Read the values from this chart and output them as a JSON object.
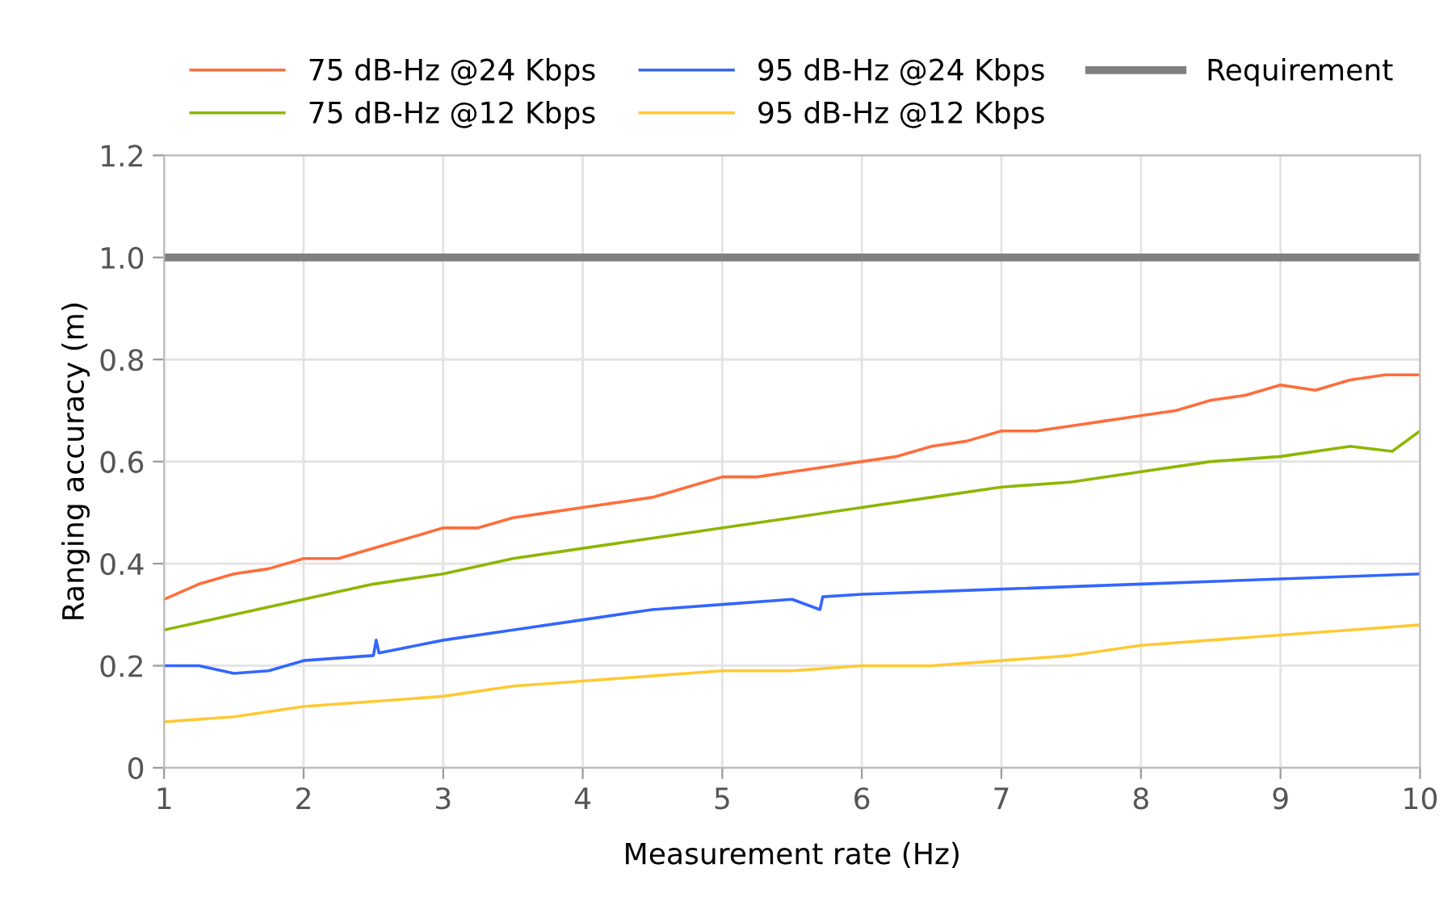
{
  "chart_data": {
    "type": "line",
    "xlabel": "Measurement rate (Hz)",
    "ylabel": "Ranging accuracy (m)",
    "xlim": [
      1,
      10
    ],
    "xticks": [
      1,
      2,
      3,
      4,
      5,
      6,
      7,
      8,
      9,
      10
    ],
    "ylim": [
      0,
      1.2
    ],
    "yticks": [
      0,
      0.2,
      0.4,
      0.6,
      0.8,
      {
        "value": 1,
        "label": "1.0"
      },
      1.2
    ],
    "grid": true,
    "legend": "top",
    "line_style": "solid",
    "marker": "none",
    "series": [
      {
        "name": "75 dB-Hz @24 Kbps",
        "color": "#ff6d3b",
        "x": [
          1,
          1.25,
          1.5,
          1.75,
          2,
          2.25,
          2.5,
          2.75,
          3,
          3.25,
          3.5,
          3.75,
          4,
          4.25,
          4.5,
          4.75,
          5,
          5.25,
          5.5,
          5.75,
          6,
          6.25,
          6.5,
          6.75,
          7,
          7.25,
          7.5,
          7.75,
          8,
          8.25,
          8.5,
          8.75,
          9,
          9.25,
          9.5,
          9.75,
          10
        ],
        "values": [
          0.33,
          0.36,
          0.38,
          0.39,
          0.41,
          0.41,
          0.43,
          0.45,
          0.47,
          0.47,
          0.49,
          0.5,
          0.51,
          0.52,
          0.53,
          0.55,
          0.57,
          0.57,
          0.58,
          0.59,
          0.6,
          0.61,
          0.63,
          0.64,
          0.66,
          0.66,
          0.67,
          0.68,
          0.69,
          0.7,
          0.72,
          0.73,
          0.75,
          0.74,
          0.76,
          0.77,
          0.77
        ]
      },
      {
        "name": "75 dB-Hz @12 Kbps",
        "color": "#8db600",
        "x": [
          1,
          1.5,
          2,
          2.5,
          3,
          3.5,
          4,
          4.5,
          5,
          5.5,
          6,
          6.5,
          7,
          7.5,
          8,
          8.5,
          9,
          9.5,
          9.8,
          10
        ],
        "values": [
          0.27,
          0.3,
          0.33,
          0.36,
          0.38,
          0.41,
          0.43,
          0.45,
          0.47,
          0.49,
          0.51,
          0.53,
          0.55,
          0.56,
          0.58,
          0.6,
          0.61,
          0.63,
          0.62,
          0.66
        ]
      },
      {
        "name": "95 dB-Hz @24 Kbps",
        "color": "#3366ff",
        "x": [
          1,
          1.25,
          1.5,
          1.75,
          2,
          2.5,
          2.52,
          2.54,
          3,
          3.5,
          4,
          4.5,
          5,
          5.5,
          5.7,
          5.72,
          6,
          7,
          8,
          9,
          10
        ],
        "values": [
          0.2,
          0.2,
          0.185,
          0.19,
          0.21,
          0.22,
          0.25,
          0.225,
          0.25,
          0.27,
          0.29,
          0.31,
          0.32,
          0.33,
          0.31,
          0.335,
          0.34,
          0.35,
          0.36,
          0.37,
          0.38
        ]
      },
      {
        "name": "95 dB-Hz @12 Kbps",
        "color": "#ffc933",
        "x": [
          1,
          1.5,
          2,
          2.5,
          3,
          3.5,
          4,
          4.5,
          5,
          5.5,
          6,
          6.5,
          7,
          7.5,
          8,
          8.5,
          9,
          9.5,
          10
        ],
        "values": [
          0.09,
          0.1,
          0.12,
          0.13,
          0.14,
          0.16,
          0.17,
          0.18,
          0.19,
          0.19,
          0.2,
          0.2,
          0.21,
          0.22,
          0.24,
          0.25,
          0.26,
          0.27,
          0.28
        ]
      },
      {
        "name": "Requirement",
        "color": "#808080",
        "x": [
          1,
          10
        ],
        "values": [
          1,
          1
        ]
      }
    ]
  }
}
